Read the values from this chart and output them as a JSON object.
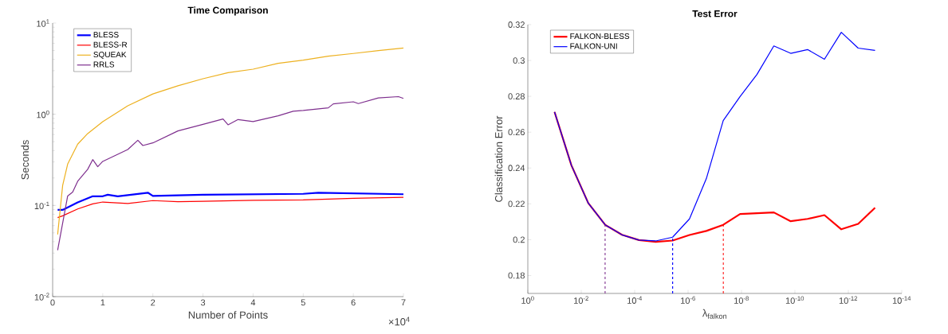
{
  "chart_data": [
    {
      "type": "line",
      "title": "Time Comparison",
      "xlabel": "Number of Points",
      "ylabel": "Seconds",
      "log": "y",
      "legend": "top left",
      "xlim": [
        0,
        7
      ],
      "ylim": [
        0.01,
        10
      ],
      "xticks": [
        0,
        1,
        2,
        3,
        4,
        5,
        6,
        7
      ],
      "yticks": [
        {
          "value": 0.01,
          "label": "10$^{-2}$"
        },
        {
          "value": 0.1,
          "label": "10$^{-1}$"
        },
        {
          "value": 1,
          "label": "10$^{0}$"
        },
        {
          "value": 10,
          "label": "10$^{1}$"
        }
      ],
      "annotations": [
        "×10$^{4}$"
      ],
      "series": [
        {
          "name": "BLESS",
          "color": "#0000ff",
          "x": [
            0.1,
            0.2,
            0.5,
            0.8,
            1.0,
            1.1,
            1.3,
            1.9,
            2.0,
            3.0,
            5.0,
            5.3,
            7.0
          ],
          "values": [
            0.0894,
            0.0894,
            0.108,
            0.126,
            0.126,
            0.131,
            0.126,
            0.138,
            0.127,
            0.131,
            0.134,
            0.138,
            0.1327
          ]
        },
        {
          "name": "BLESS-R",
          "color": "#ff0000",
          "x": [
            0.1,
            0.2,
            0.5,
            0.8,
            1.0,
            1.5,
            2.0,
            2.5,
            3.0,
            4.0,
            5.0,
            6.0,
            7.0
          ],
          "values": [
            0.0735,
            0.077,
            0.0914,
            0.104,
            0.109,
            0.105,
            0.113,
            0.11,
            0.111,
            0.114,
            0.115,
            0.1195,
            0.1226
          ]
        },
        {
          "name": "SQUEAK",
          "color": "#edb120",
          "x": [
            0.1,
            0.2,
            0.3,
            0.5,
            0.7,
            1.0,
            1.5,
            2.0,
            2.5,
            3.0,
            3.5,
            4.0,
            4.5,
            5.0,
            5.5,
            6.0,
            6.5,
            7.0
          ],
          "values": [
            0.048,
            0.166,
            0.284,
            0.47,
            0.614,
            0.83,
            1.24,
            1.67,
            2.05,
            2.45,
            2.86,
            3.12,
            3.62,
            3.92,
            4.33,
            4.64,
            4.99,
            5.33
          ]
        },
        {
          "name": "RRLS",
          "color": "#7e2f8e",
          "x": [
            0.1,
            0.3,
            0.4,
            0.5,
            0.7,
            0.8,
            0.9,
            1.0,
            1.5,
            1.7,
            1.8,
            2.0,
            2.5,
            3.0,
            3.4,
            3.5,
            3.7,
            4.0,
            4.5,
            4.8,
            5.0,
            5.5,
            5.6,
            6.0,
            6.1,
            6.5,
            6.9,
            7.0
          ],
          "values": [
            0.0323,
            0.127,
            0.14,
            0.184,
            0.249,
            0.318,
            0.266,
            0.304,
            0.41,
            0.519,
            0.454,
            0.485,
            0.656,
            0.776,
            0.887,
            0.766,
            0.875,
            0.83,
            0.96,
            1.08,
            1.1,
            1.175,
            1.3,
            1.37,
            1.31,
            1.51,
            1.56,
            1.49
          ]
        }
      ]
    },
    {
      "type": "line",
      "title": "Test Error",
      "xlabel": "λ$_{falkon}$",
      "ylabel": "Classification Error",
      "log": "x",
      "legend": "top left",
      "xlim": [
        1,
        1e-14
      ],
      "ylim": [
        0.17,
        0.32
      ],
      "xticks": [
        {
          "value": 1,
          "label": "10$^{0}$"
        },
        {
          "value": 0.01,
          "label": "10$^{-2}$"
        },
        {
          "value": 0.0001,
          "label": "10$^{-4}$"
        },
        {
          "value": 1e-06,
          "label": "10$^{-6}$"
        },
        {
          "value": 1e-08,
          "label": "10$^{-8}$"
        },
        {
          "value": 1e-10,
          "label": "10$^{-10}$"
        },
        {
          "value": 1e-12,
          "label": "10$^{-12}$"
        },
        {
          "value": 1e-14,
          "label": "10$^{-14}$"
        }
      ],
      "yticks": [
        0.18,
        0.2,
        0.22,
        0.24,
        0.26,
        0.28,
        0.3,
        0.32
      ],
      "series": [
        {
          "name": "FALKON-BLESS",
          "color": "#ff0000",
          "x": [
            0.1,
            0.02336,
            0.005456,
            0.001274,
            0.0002976,
            6.95e-05,
            1.624e-05,
            3.79e-06,
            8.86e-07,
            2.07e-07,
            4.83e-08,
            1.129e-08,
            2.64e-09,
            6.16e-10,
            1.438e-10,
            3.36e-11,
            7.85e-12,
            1.833e-12,
            4.28e-13,
            1e-13
          ],
          "values": [
            0.2713,
            0.2415,
            0.2204,
            0.2083,
            0.2027,
            0.1998,
            0.1988,
            0.1995,
            0.2026,
            0.2049,
            0.2083,
            0.2143,
            0.2148,
            0.2152,
            0.2103,
            0.2116,
            0.2137,
            0.2058,
            0.2088,
            0.2178
          ]
        },
        {
          "name": "FALKON-UNI",
          "color": "#0000ff",
          "x": [
            0.1,
            0.02336,
            0.005456,
            0.001274,
            0.0002976,
            6.95e-05,
            1.624e-05,
            3.79e-06,
            8.86e-07,
            2.07e-07,
            4.83e-08,
            1.129e-08,
            2.64e-09,
            6.16e-10,
            1.438e-10,
            3.36e-11,
            7.85e-12,
            1.833e-12,
            4.28e-13,
            1e-13
          ],
          "values": [
            0.2713,
            0.2415,
            0.2204,
            0.2083,
            0.2027,
            0.1998,
            0.1993,
            0.2014,
            0.2116,
            0.2341,
            0.2665,
            0.2799,
            0.2922,
            0.3081,
            0.304,
            0.3061,
            0.3007,
            0.3157,
            0.3069,
            0.3056
          ]
        },
        {
          "color": "#7e2f8e",
          "line_style": "dashed",
          "x": [
            0.001274,
            0.001274
          ],
          "values": [
            0.17,
            0.2083
          ]
        },
        {
          "color": "#0000ff",
          "line_style": "dashed",
          "x": [
            3.79e-06,
            3.79e-06
          ],
          "values": [
            0.17,
            0.2014
          ]
        },
        {
          "color": "#ff0000",
          "line_style": "dashed",
          "x": [
            4.83e-08,
            4.83e-08
          ],
          "values": [
            0.17,
            0.2083
          ]
        }
      ]
    }
  ]
}
